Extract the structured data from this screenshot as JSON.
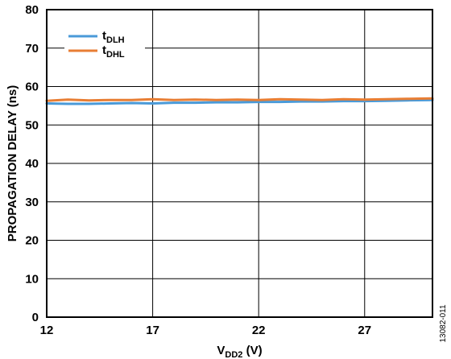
{
  "chart_data": {
    "type": "line",
    "xlabel": {
      "main": "V",
      "sub": "DD2",
      "suffix": " (V)"
    },
    "ylabel": "PROPAGATION DELAY (ns)",
    "xlim": [
      12,
      30.2
    ],
    "ylim": [
      0,
      80
    ],
    "xticks": [
      "12",
      "17",
      "22",
      "27"
    ],
    "yticks": [
      "0",
      "10",
      "20",
      "30",
      "40",
      "50",
      "60",
      "70",
      "80"
    ],
    "grid": true,
    "legend": {
      "position": "top-left"
    },
    "figure_id": "13082-011",
    "x": [
      12,
      13,
      14,
      15,
      16,
      17,
      18,
      19,
      20,
      21,
      22,
      23,
      24,
      25,
      26,
      27,
      28,
      29,
      30.2
    ],
    "series": [
      {
        "name_main": "t",
        "name_sub": "DLH",
        "color": "#4a9ad8",
        "values": [
          55.6,
          55.5,
          55.5,
          55.6,
          55.7,
          55.6,
          55.8,
          55.8,
          55.9,
          55.9,
          56.0,
          56.0,
          56.1,
          56.1,
          56.2,
          56.2,
          56.3,
          56.4,
          56.5
        ]
      },
      {
        "name_main": "t",
        "name_sub": "DHL",
        "color": "#e87e34",
        "values": [
          56.3,
          56.6,
          56.4,
          56.5,
          56.5,
          56.7,
          56.5,
          56.6,
          56.5,
          56.6,
          56.5,
          56.7,
          56.6,
          56.5,
          56.7,
          56.6,
          56.7,
          56.8,
          56.9
        ]
      }
    ]
  }
}
